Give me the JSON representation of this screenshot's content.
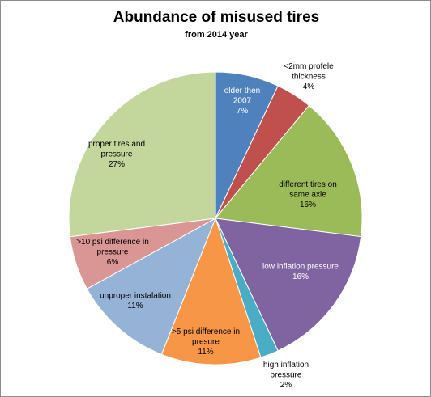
{
  "chart_data": {
    "type": "pie",
    "title": "Abundance of misused tires",
    "subtitle": "from 2014 year",
    "slices": [
      {
        "label": [
          "older then",
          "2007",
          "7%"
        ],
        "value": 7,
        "color": "#4F81BD",
        "label_color": "#ffffff"
      },
      {
        "label": [
          "<2mm profele",
          "thickness",
          "4%"
        ],
        "value": 4,
        "color": "#C0504D",
        "label_color": "#000000"
      },
      {
        "label": [
          "different tires on",
          "same axle",
          "16%"
        ],
        "value": 16,
        "color": "#9BBB59",
        "label_color": "#000000"
      },
      {
        "label": [
          "low inflation pressure",
          "16%"
        ],
        "value": 16,
        "color": "#8064A2",
        "label_color": "#ffffff"
      },
      {
        "label": [
          "high inflation",
          "pressure",
          "2%"
        ],
        "value": 2,
        "color": "#4BACC6",
        "label_color": "#000000"
      },
      {
        "label": [
          ">5 psi difference in",
          "presure",
          "11%"
        ],
        "value": 11,
        "color": "#F79646",
        "label_color": "#000000"
      },
      {
        "label": [
          "unproper instalation",
          "11%"
        ],
        "value": 11,
        "color": "#95B3D7",
        "label_color": "#000000"
      },
      {
        "label": [
          ">10 psi difference in",
          "pressure",
          "6%"
        ],
        "value": 6,
        "color": "#D99694",
        "label_color": "#000000"
      },
      {
        "label": [
          "proper tires and",
          "pressure",
          "27%"
        ],
        "value": 27,
        "color": "#C3D69B",
        "label_color": "#000000"
      }
    ],
    "legend": "none"
  }
}
